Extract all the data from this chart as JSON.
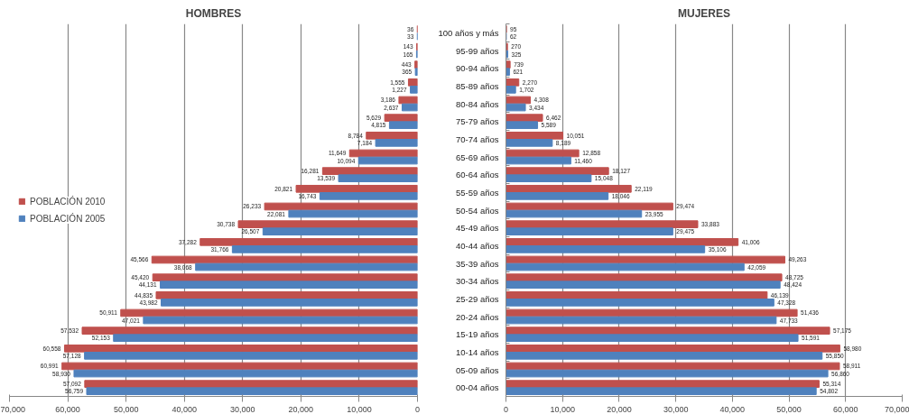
{
  "chart_data": [
    {
      "type": "bar",
      "orientation": "horizontal",
      "title": "HOMBRES",
      "categories": [
        null,
        null,
        null,
        null,
        null,
        null,
        null,
        null,
        null,
        null,
        null,
        null,
        null,
        null,
        null,
        null,
        null,
        null,
        null,
        null,
        null
      ],
      "series": [
        {
          "name": "POBLACIÓN 2010",
          "color": "#c0504d",
          "values": [
            36,
            143,
            443,
            1555,
            3186,
            5629,
            8784,
            11649,
            16281,
            20821,
            26233,
            30738,
            37282,
            45566,
            45420,
            44835,
            50911,
            57532,
            60558,
            60991,
            57092
          ],
          "value_labels": [
            "36",
            "143",
            "443",
            "1,555",
            "3,186",
            "5,629",
            "8,784",
            "11,649",
            "16,281",
            "20,821",
            "26,233",
            "30,738",
            "37,282",
            "45,566",
            "45,420",
            "44,835",
            "50,911",
            "57,532",
            "60,558",
            "60,991",
            "57,092"
          ]
        },
        {
          "name": "POBLACIÓN 2005",
          "color": "#4f81bd",
          "values": [
            33,
            165,
            365,
            1227,
            2637,
            4815,
            7184,
            10094,
            13539,
            16743,
            22081,
            26507,
            31766,
            38068,
            44131,
            43982,
            47021,
            52153,
            57128,
            58930,
            56759
          ],
          "value_labels": [
            "33",
            "165",
            "365",
            "1,227",
            "2,637",
            "4,815",
            "7,184",
            "10,094",
            "13,539",
            "16,743",
            "22,081",
            "26,507",
            "31,766",
            "38,068",
            "44,131",
            "43,982",
            "47,021",
            "52,153",
            "57,128",
            "58,930",
            "56,759"
          ]
        }
      ],
      "xlim": [
        70000,
        0
      ],
      "xticks": [
        {
          "value": 70000,
          "label": "70,000"
        },
        {
          "value": 60000,
          "label": "60,000"
        },
        {
          "value": 50000,
          "label": "50,000"
        },
        {
          "value": 40000,
          "label": "40,000"
        },
        {
          "value": 30000,
          "label": "30,000"
        },
        {
          "value": 20000,
          "label": "20,000"
        },
        {
          "value": 10000,
          "label": "10,000"
        },
        0
      ],
      "grid": "x",
      "legend": "left",
      "tick_labels": "x"
    },
    {
      "type": "bar",
      "orientation": "horizontal",
      "title": "MUJERES",
      "categories": [
        "100 años y más",
        "95-99 años",
        "90-94 años",
        "85-89 años",
        "80-84 años",
        "75-79 años",
        "70-74 años",
        "65-69 años",
        "60-64 años",
        "55-59 años",
        "50-54 años",
        "45-49 años",
        "40-44 años",
        "35-39 años",
        "30-34 años",
        "25-29 años",
        "20-24 años",
        "15-19 años",
        "10-14 años",
        "05-09 años",
        "00-04 años"
      ],
      "series": [
        {
          "color": "#c0504d",
          "values": [
            95,
            270,
            739,
            2270,
            4308,
            6462,
            10051,
            12858,
            18127,
            22119,
            29474,
            33883,
            41006,
            49263,
            48725,
            46139,
            51436,
            57175,
            58980,
            58911,
            55314
          ],
          "value_labels": [
            "95",
            "270",
            "739",
            "2,270",
            "4,308",
            "6,462",
            "10,051",
            "12,858",
            "18,127",
            "22,119",
            "29,474",
            "33,883",
            "41,006",
            "49,263",
            "48,725",
            "46,139",
            "51,436",
            "57,175",
            "58,980",
            "58,911",
            "55,314"
          ]
        },
        {
          "color": "#4f81bd",
          "values": [
            62,
            325,
            621,
            1702,
            3434,
            5589,
            8189,
            11460,
            15048,
            18046,
            23955,
            29475,
            35106,
            42059,
            48424,
            47328,
            47733,
            51591,
            55850,
            56860,
            54802
          ],
          "value_labels": [
            "62",
            "325",
            "621",
            "1,702",
            "3,434",
            "5,589",
            "8,189",
            "11,460",
            "15,048",
            "18,046",
            "23,955",
            "29,475",
            "35,106",
            "42,059",
            "48,424",
            "47,328",
            "47,733",
            "51,591",
            "55,850",
            "56,860",
            "54,802"
          ]
        }
      ],
      "xlim": [
        0,
        70000
      ],
      "xticks": [
        0,
        {
          "value": 10000,
          "label": "10,000"
        },
        {
          "value": 20000,
          "label": "20,000"
        },
        {
          "value": 30000,
          "label": "30,000"
        },
        {
          "value": 40000,
          "label": "40,000"
        },
        {
          "value": 50000,
          "label": "50,000"
        },
        {
          "value": 60000,
          "label": "60,000"
        },
        {
          "value": 70000,
          "label": "70,000"
        }
      ],
      "grid": "x"
    }
  ]
}
